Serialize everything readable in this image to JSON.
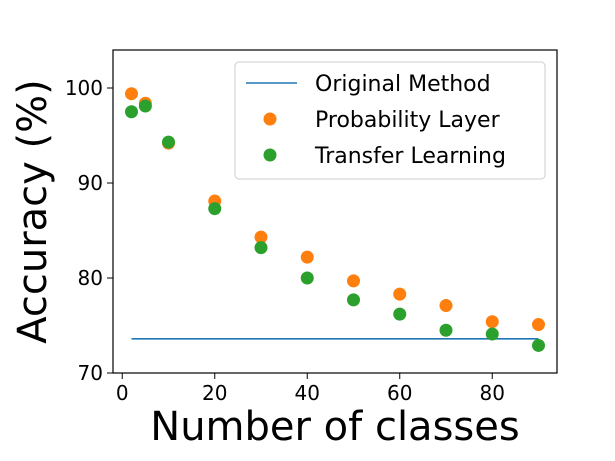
{
  "chart_data": {
    "type": "scatter",
    "xlabel": "Number of classes",
    "ylabel": "Accuracy (%)",
    "xlim": [
      -2,
      94
    ],
    "ylim": [
      70,
      104
    ],
    "x_ticks": [
      0,
      20,
      40,
      60,
      80
    ],
    "y_ticks": [
      70,
      80,
      90,
      100
    ],
    "x_tick_labels": [
      "0",
      "20",
      "40",
      "60",
      "80"
    ],
    "y_tick_labels": [
      "70",
      "80",
      "90",
      "100"
    ],
    "grid": false,
    "legend_position": "top-right",
    "series": [
      {
        "name": "Original Method",
        "kind": "line",
        "color": "#1f77b4",
        "x": [
          2,
          90
        ],
        "y": [
          73.6,
          73.6
        ]
      },
      {
        "name": "Probability Layer",
        "kind": "scatter",
        "color": "#ff7f0e",
        "x": [
          2,
          5,
          10,
          20,
          30,
          40,
          50,
          60,
          70,
          80,
          90
        ],
        "y": [
          99.4,
          98.4,
          94.2,
          88.1,
          84.3,
          82.2,
          79.7,
          78.3,
          77.1,
          75.4,
          75.1
        ]
      },
      {
        "name": "Transfer Learning",
        "kind": "scatter",
        "color": "#2ca02c",
        "x": [
          2,
          5,
          10,
          20,
          30,
          40,
          50,
          60,
          70,
          80,
          90
        ],
        "y": [
          97.5,
          98.1,
          94.3,
          87.3,
          83.2,
          80.0,
          77.7,
          76.2,
          74.5,
          74.1,
          72.9
        ]
      }
    ]
  }
}
